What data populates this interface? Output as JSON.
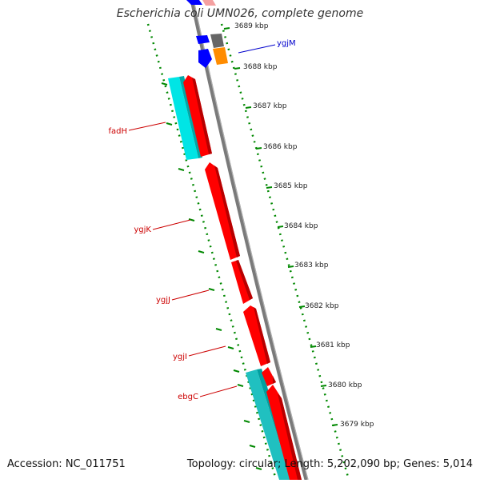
{
  "header": {
    "title": "Escherichia coli UMN026, complete genome"
  },
  "footer": {
    "accession": "Accession: NC_011751",
    "summary": "Topology: circular; Length: 5,202,090 bp; Genes: 5,014"
  },
  "ticks": [
    {
      "label": "3689 kbp"
    },
    {
      "label": "3688 kbp"
    },
    {
      "label": "3687 kbp"
    },
    {
      "label": "3686 kbp"
    },
    {
      "label": "3685 kbp"
    },
    {
      "label": "3684 kbp"
    },
    {
      "label": "3683 kbp"
    },
    {
      "label": "3682 kbp"
    },
    {
      "label": "3681 kbp"
    },
    {
      "label": "3680 kbp"
    },
    {
      "label": "3679 kbp"
    }
  ],
  "gene_labels": [
    {
      "label": "ygjM",
      "color": "#0000cc"
    },
    {
      "label": "fadH",
      "color": "#cc0000"
    },
    {
      "label": "ygjK",
      "color": "#cc0000"
    },
    {
      "label": "ygjJ",
      "color": "#cc0000"
    },
    {
      "label": "ygjI",
      "color": "#cc0000"
    },
    {
      "label": "ebgC",
      "color": "#cc0000"
    }
  ],
  "colors": {
    "cds_forward": "#ff0000",
    "cds_reverse": "#0000ff",
    "blast_cyan": "#00e5e5",
    "blast_teal": "#20c0c0",
    "pink": "#f4a0a0",
    "orange": "#ff8c00",
    "gray": "#666666",
    "tick_green": "#008800",
    "backbone": "#808080"
  }
}
